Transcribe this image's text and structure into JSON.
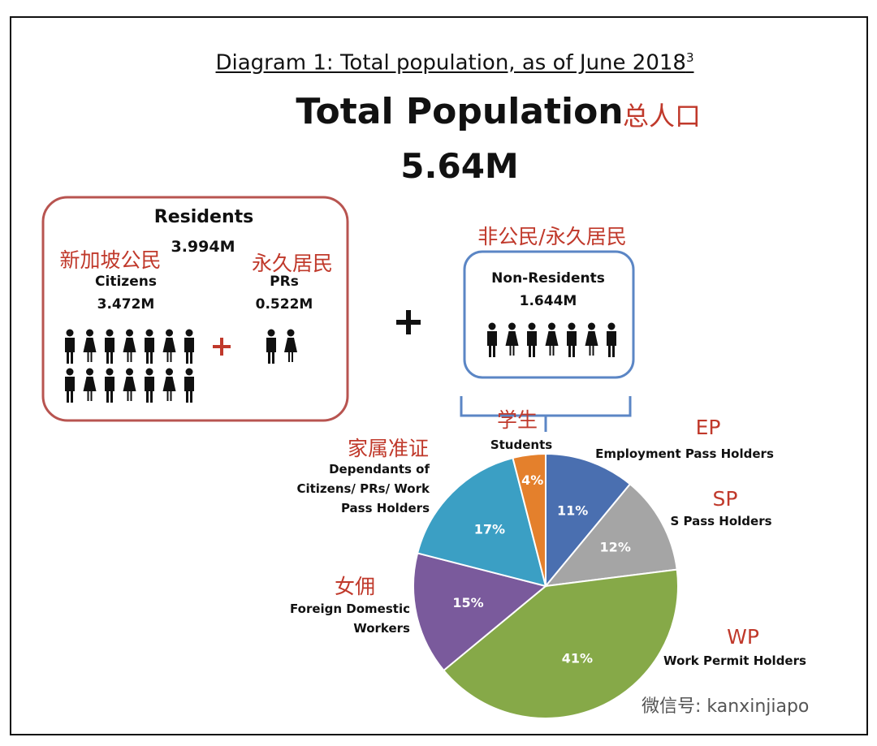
{
  "title": "Diagram 1: Total population, as of June 2018",
  "title_note": "3",
  "heading": "Total Population",
  "heading_zh": "总人口",
  "total": "5.64M",
  "residents": {
    "title": "Residents",
    "total": "3.994M",
    "citizens": {
      "label_zh": "新加坡公民",
      "label": "Citizens",
      "value": "3.472M"
    },
    "prs": {
      "label_zh": "永久居民",
      "label": "PRs",
      "value": "0.522M"
    }
  },
  "non_residents": {
    "label_zh": "非公民/永久居民",
    "title": "Non-Residents",
    "total": "1.644M"
  },
  "chart_data": {
    "type": "pie",
    "categories": [
      "Employment Pass Holders",
      "S Pass Holders",
      "Work Permit Holders",
      "Foreign Domestic Workers",
      "Dependants of Citizens/ PRs/ Work Pass Holders",
      "Students"
    ],
    "category_codes": [
      "EP",
      "SP",
      "WP",
      "女佣",
      "家属准证",
      "学生"
    ],
    "values": [
      11,
      12,
      41,
      15,
      17,
      4
    ],
    "value_labels": [
      "11%",
      "12%",
      "41%",
      "15%",
      "17%",
      "4%"
    ],
    "colors": [
      "#4a6fb0",
      "#a5a5a5",
      "#86a948",
      "#7a5a9c",
      "#3b9fc4",
      "#e4802c"
    ]
  },
  "watermark": "微信号: kanxinjiapo"
}
